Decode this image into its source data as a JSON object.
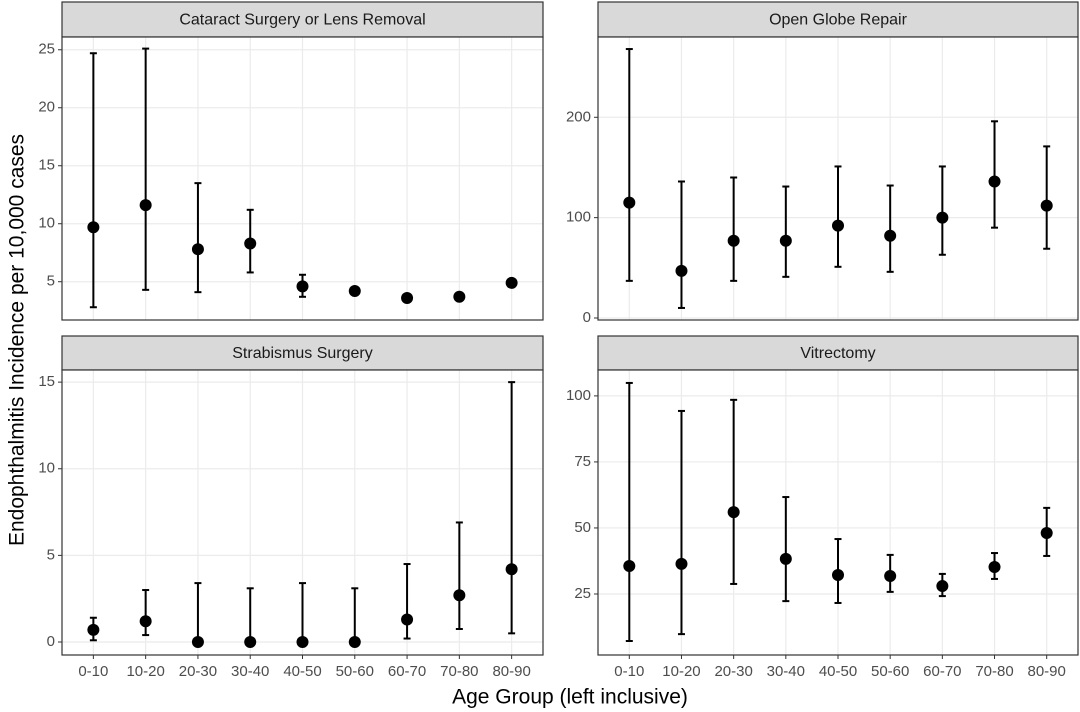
{
  "x_label": "Age Group (left inclusive)",
  "y_label": "Endophthalmitis Incidence per 10,000 cases",
  "chart_data": [
    {
      "type": "errorbar",
      "title": "Cataract Surgery or Lens Removal",
      "categories": [
        "0-10",
        "10-20",
        "20-30",
        "30-40",
        "40-50",
        "50-60",
        "60-70",
        "70-80",
        "80-90"
      ],
      "values": [
        9.7,
        11.6,
        7.8,
        8.3,
        4.6,
        4.2,
        3.6,
        3.7,
        4.9
      ],
      "lower": [
        2.8,
        4.3,
        4.1,
        5.8,
        3.7,
        3.9,
        3.4,
        3.5,
        4.7
      ],
      "upper": [
        24.7,
        25.1,
        13.5,
        11.2,
        5.6,
        4.4,
        3.8,
        3.9,
        5.1
      ],
      "color": "#000000",
      "ylim": [
        1.7,
        26.1
      ],
      "yticks": [
        5,
        10,
        15,
        20,
        25
      ],
      "grid": true
    },
    {
      "type": "errorbar",
      "title": "Open Globe Repair",
      "categories": [
        "0-10",
        "10-20",
        "20-30",
        "30-40",
        "40-50",
        "50-60",
        "60-70",
        "70-80",
        "80-90"
      ],
      "values": [
        115,
        47,
        77,
        77,
        92,
        82,
        100,
        136,
        112
      ],
      "lower": [
        37,
        10,
        37,
        41,
        51,
        46,
        63,
        90,
        69
      ],
      "upper": [
        268,
        136,
        140,
        131,
        151,
        132,
        151,
        196,
        171
      ],
      "color": "#000000",
      "ylim": [
        -2,
        280
      ],
      "yticks": [
        0,
        100,
        200
      ],
      "grid": true
    },
    {
      "type": "errorbar",
      "title": "Strabismus Surgery",
      "categories": [
        "0-10",
        "10-20",
        "20-30",
        "30-40",
        "40-50",
        "50-60",
        "60-70",
        "70-80",
        "80-90"
      ],
      "values": [
        0.7,
        1.2,
        0,
        0,
        0,
        0,
        1.3,
        2.7,
        4.2
      ],
      "lower": [
        0.1,
        0.4,
        0,
        0,
        0,
        0,
        0.2,
        0.75,
        0.5
      ],
      "upper": [
        1.4,
        3.0,
        3.4,
        3.1,
        3.4,
        3.1,
        4.5,
        6.9,
        15.0
      ],
      "color": "#000000",
      "ylim": [
        -0.75,
        15.7
      ],
      "yticks": [
        0,
        5,
        10,
        15
      ],
      "grid": true
    },
    {
      "type": "errorbar",
      "title": "Vitrectomy",
      "categories": [
        "0-10",
        "10-20",
        "20-30",
        "30-40",
        "40-50",
        "50-60",
        "60-70",
        "70-80",
        "80-90"
      ],
      "values": [
        35.6,
        36.4,
        56,
        38.3,
        32.2,
        31.8,
        28,
        35.2,
        48.1
      ],
      "lower": [
        7.2,
        9.8,
        28.8,
        22.3,
        21.6,
        25.8,
        24.2,
        30.7,
        39.4
      ],
      "upper": [
        104.9,
        94.3,
        98.5,
        61.7,
        45.8,
        39.8,
        32.6,
        40.5,
        57.6
      ],
      "color": "#000000",
      "ylim": [
        1.9,
        109.8
      ],
      "yticks": [
        25,
        50,
        75,
        100
      ],
      "grid": true
    }
  ]
}
